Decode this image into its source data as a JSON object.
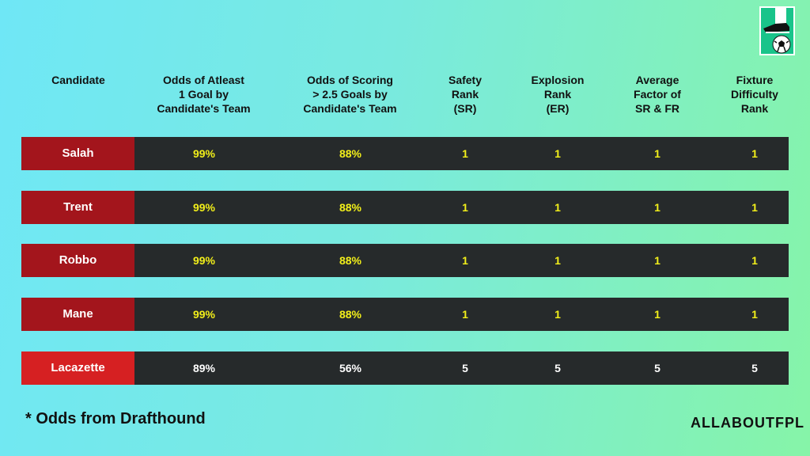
{
  "headers": {
    "candidate": "Candidate",
    "odds_one_goal": "Odds of Atleast\n1 Goal by\nCandidate's Team",
    "odds_25": "Odds of Scoring\n> 2.5 Goals by\nCandidate's Team",
    "safety": "Safety\nRank\n(SR)",
    "explosion": "Explosion\nRank\n(ER)",
    "average": "Average\nFactor of\nSR & FR",
    "fixture": "Fixture\nDifficulty\nRank"
  },
  "rows": [
    {
      "name": "Salah",
      "odds1": "99%",
      "odds25": "88%",
      "sr": "1",
      "er": "1",
      "avg": "1",
      "fdr": "1"
    },
    {
      "name": "Trent",
      "odds1": "99%",
      "odds25": "88%",
      "sr": "1",
      "er": "1",
      "avg": "1",
      "fdr": "1"
    },
    {
      "name": "Robbo",
      "odds1": "99%",
      "odds25": "88%",
      "sr": "1",
      "er": "1",
      "avg": "1",
      "fdr": "1"
    },
    {
      "name": "Mane",
      "odds1": "99%",
      "odds25": "88%",
      "sr": "1",
      "er": "1",
      "avg": "1",
      "fdr": "1"
    },
    {
      "name": "Lacazette",
      "odds1": "89%",
      "odds25": "56%",
      "sr": "5",
      "er": "5",
      "avg": "5",
      "fdr": "5"
    }
  ],
  "row_styles": [
    {
      "name_bg": "#a3151c",
      "value_color": "#f2ef1a"
    },
    {
      "name_bg": "#a3151c",
      "value_color": "#f2ef1a"
    },
    {
      "name_bg": "#a3151c",
      "value_color": "#f2ef1a"
    },
    {
      "name_bg": "#a3151c",
      "value_color": "#f2ef1a"
    },
    {
      "name_bg": "#d62022",
      "value_color": "#ffffff"
    }
  ],
  "footnote": "*  Odds from Drafthound",
  "brand": "ALLABOUTFPL",
  "logo_icon": "football-boot-and-ball-icon"
}
